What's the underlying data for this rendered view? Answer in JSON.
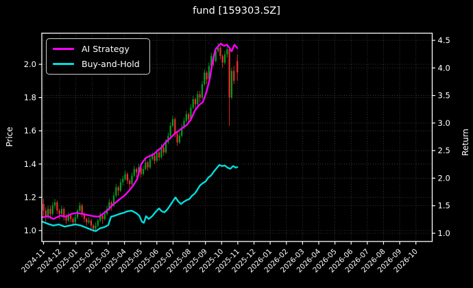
{
  "chart_data": {
    "type": "candlestick+line",
    "title": "fund [159303.SZ]",
    "ylabel_left": "Price",
    "ylabel_right": "Return",
    "grid": true,
    "legend_position": "upper left",
    "x_tick_labels": [
      "2024-11",
      "2024-12",
      "2025-01",
      "2025-02",
      "2025-03",
      "2025-04",
      "2025-05",
      "2025-06",
      "2025-07",
      "2025-08",
      "2025-09",
      "2025-10",
      "2025-11",
      "2025-12",
      "2026-01",
      "2026-02",
      "2026-03",
      "2026-04",
      "2026-05",
      "2026-06",
      "2026-07",
      "2026-08",
      "2026-09",
      "2026-10"
    ],
    "price_ticks": [
      1.0,
      1.2,
      1.4,
      1.6,
      1.8,
      2.0
    ],
    "return_ticks": [
      1.0,
      1.5,
      2.0,
      2.5,
      3.0,
      3.5,
      4.0,
      4.5
    ],
    "price_axis_range": [
      0.925,
      2.2
    ],
    "return_axis_range": [
      0.85,
      4.64
    ],
    "colors": {
      "background": "#000000",
      "axes_text": "#ffffff",
      "grid": "#5a5a5a",
      "ai_strategy": "#ff00ff",
      "buy_and_hold": "#00e0e0",
      "candle_up": "#00a01e",
      "candle_down": "#f03030"
    },
    "series": [
      {
        "name": "AI Strategy",
        "axis": "return",
        "color": "#ff00ff",
        "points": [
          [
            -0.06,
            1.29
          ],
          [
            0.28,
            1.31
          ],
          [
            0.61,
            1.26
          ],
          [
            1.04,
            1.32
          ],
          [
            1.38,
            1.3
          ],
          [
            1.71,
            1.35
          ],
          [
            2.05,
            1.37
          ],
          [
            2.39,
            1.35
          ],
          [
            2.73,
            1.33
          ],
          [
            3.07,
            1.31
          ],
          [
            3.41,
            1.3
          ],
          [
            3.75,
            1.37
          ],
          [
            4.0,
            1.43
          ],
          [
            4.25,
            1.51
          ],
          [
            4.51,
            1.57
          ],
          [
            4.76,
            1.63
          ],
          [
            5.02,
            1.69
          ],
          [
            5.27,
            1.77
          ],
          [
            5.52,
            1.86
          ],
          [
            5.78,
            1.98
          ],
          [
            6.03,
            2.25
          ],
          [
            6.29,
            2.36
          ],
          [
            6.54,
            2.4
          ],
          [
            6.79,
            2.43
          ],
          [
            7.05,
            2.5
          ],
          [
            7.3,
            2.56
          ],
          [
            7.56,
            2.66
          ],
          [
            7.81,
            2.72
          ],
          [
            8.07,
            2.8
          ],
          [
            8.32,
            2.85
          ],
          [
            8.57,
            2.91
          ],
          [
            8.83,
            2.96
          ],
          [
            9.08,
            3.05
          ],
          [
            9.34,
            3.22
          ],
          [
            9.59,
            3.32
          ],
          [
            9.84,
            3.38
          ],
          [
            10.06,
            3.56
          ],
          [
            10.27,
            3.8
          ],
          [
            10.44,
            4.11
          ],
          [
            10.61,
            4.33
          ],
          [
            10.78,
            4.39
          ],
          [
            10.94,
            4.44
          ],
          [
            11.16,
            4.4
          ],
          [
            11.33,
            4.42
          ],
          [
            11.5,
            4.36
          ],
          [
            11.62,
            4.3
          ],
          [
            11.79,
            4.42
          ],
          [
            11.97,
            4.36
          ]
        ]
      },
      {
        "name": "Buy-and-Hold",
        "axis": "return",
        "color": "#00e0e0",
        "points": [
          [
            -0.06,
            1.21
          ],
          [
            0.28,
            1.17
          ],
          [
            0.61,
            1.14
          ],
          [
            0.95,
            1.16
          ],
          [
            1.29,
            1.12
          ],
          [
            1.63,
            1.14
          ],
          [
            1.97,
            1.16
          ],
          [
            2.31,
            1.14
          ],
          [
            2.65,
            1.1
          ],
          [
            2.98,
            1.06
          ],
          [
            3.24,
            1.04
          ],
          [
            3.49,
            1.09
          ],
          [
            3.75,
            1.11
          ],
          [
            4.0,
            1.15
          ],
          [
            4.17,
            1.3
          ],
          [
            4.42,
            1.32
          ],
          [
            4.68,
            1.35
          ],
          [
            4.93,
            1.37
          ],
          [
            5.19,
            1.4
          ],
          [
            5.44,
            1.41
          ],
          [
            5.7,
            1.37
          ],
          [
            5.91,
            1.32
          ],
          [
            6.08,
            1.21
          ],
          [
            6.2,
            1.19
          ],
          [
            6.33,
            1.31
          ],
          [
            6.5,
            1.26
          ],
          [
            6.71,
            1.31
          ],
          [
            6.96,
            1.4
          ],
          [
            7.13,
            1.45
          ],
          [
            7.3,
            1.4
          ],
          [
            7.47,
            1.38
          ],
          [
            7.64,
            1.43
          ],
          [
            7.81,
            1.5
          ],
          [
            7.98,
            1.58
          ],
          [
            8.15,
            1.65
          ],
          [
            8.32,
            1.58
          ],
          [
            8.49,
            1.53
          ],
          [
            8.66,
            1.57
          ],
          [
            8.83,
            1.6
          ],
          [
            9.0,
            1.62
          ],
          [
            9.17,
            1.68
          ],
          [
            9.34,
            1.72
          ],
          [
            9.5,
            1.79
          ],
          [
            9.67,
            1.87
          ],
          [
            9.84,
            1.91
          ],
          [
            10.01,
            1.94
          ],
          [
            10.18,
            2.01
          ],
          [
            10.35,
            2.05
          ],
          [
            10.52,
            2.12
          ],
          [
            10.69,
            2.18
          ],
          [
            10.86,
            2.24
          ],
          [
            11.03,
            2.22
          ],
          [
            11.2,
            2.23
          ],
          [
            11.37,
            2.19
          ],
          [
            11.54,
            2.17
          ],
          [
            11.71,
            2.22
          ],
          [
            11.88,
            2.19
          ],
          [
            11.97,
            2.2
          ]
        ]
      }
    ],
    "candles": {
      "axis": "price",
      "format": [
        "t_months",
        "open",
        "high",
        "low",
        "close"
      ],
      "ohlc": [
        [
          0.0,
          1.16,
          1.19,
          1.09,
          1.12
        ],
        [
          0.14,
          1.12,
          1.14,
          1.05,
          1.08
        ],
        [
          0.28,
          1.08,
          1.15,
          1.07,
          1.13
        ],
        [
          0.42,
          1.13,
          1.15,
          1.07,
          1.1
        ],
        [
          0.56,
          1.1,
          1.17,
          1.09,
          1.15
        ],
        [
          0.7,
          1.15,
          1.19,
          1.13,
          1.17
        ],
        [
          0.84,
          1.17,
          1.18,
          1.1,
          1.12
        ],
        [
          0.98,
          1.12,
          1.13,
          1.07,
          1.1
        ],
        [
          1.12,
          1.1,
          1.15,
          1.08,
          1.13
        ],
        [
          1.26,
          1.13,
          1.14,
          1.06,
          1.08
        ],
        [
          1.4,
          1.08,
          1.1,
          1.04,
          1.06
        ],
        [
          1.54,
          1.06,
          1.11,
          1.05,
          1.09
        ],
        [
          1.68,
          1.09,
          1.1,
          1.05,
          1.07
        ],
        [
          1.82,
          1.07,
          1.08,
          1.03,
          1.05
        ],
        [
          1.96,
          1.05,
          1.1,
          1.04,
          1.08
        ],
        [
          2.1,
          1.08,
          1.13,
          1.07,
          1.12
        ],
        [
          2.24,
          1.12,
          1.17,
          1.11,
          1.15
        ],
        [
          2.38,
          1.15,
          1.16,
          1.08,
          1.1
        ],
        [
          2.52,
          1.1,
          1.11,
          1.05,
          1.07
        ],
        [
          2.66,
          1.07,
          1.08,
          1.03,
          1.05
        ],
        [
          2.8,
          1.05,
          1.08,
          1.04,
          1.06
        ],
        [
          2.94,
          1.06,
          1.07,
          1.01,
          1.03
        ],
        [
          3.08,
          1.03,
          1.04,
          0.99,
          1.01
        ],
        [
          3.22,
          1.01,
          1.05,
          1.0,
          1.03
        ],
        [
          3.36,
          1.03,
          1.07,
          1.02,
          1.06
        ],
        [
          3.5,
          1.06,
          1.11,
          1.05,
          1.09
        ],
        [
          3.64,
          1.09,
          1.1,
          1.04,
          1.07
        ],
        [
          3.78,
          1.07,
          1.12,
          1.06,
          1.1
        ],
        [
          3.92,
          1.1,
          1.15,
          1.09,
          1.13
        ],
        [
          4.06,
          1.13,
          1.19,
          1.12,
          1.17
        ],
        [
          4.2,
          1.17,
          1.18,
          1.12,
          1.15
        ],
        [
          4.34,
          1.15,
          1.23,
          1.14,
          1.21
        ],
        [
          4.48,
          1.21,
          1.28,
          1.2,
          1.26
        ],
        [
          4.62,
          1.26,
          1.27,
          1.21,
          1.24
        ],
        [
          4.76,
          1.24,
          1.31,
          1.23,
          1.29
        ],
        [
          4.9,
          1.29,
          1.33,
          1.27,
          1.31
        ],
        [
          5.04,
          1.31,
          1.36,
          1.3,
          1.34
        ],
        [
          5.18,
          1.34,
          1.35,
          1.28,
          1.3
        ],
        [
          5.32,
          1.3,
          1.31,
          1.25,
          1.28
        ],
        [
          5.46,
          1.28,
          1.35,
          1.27,
          1.33
        ],
        [
          5.6,
          1.33,
          1.39,
          1.32,
          1.37
        ],
        [
          5.74,
          1.37,
          1.38,
          1.32,
          1.35
        ],
        [
          5.88,
          1.35,
          1.4,
          1.34,
          1.38
        ],
        [
          6.02,
          1.38,
          1.39,
          1.32,
          1.34
        ],
        [
          6.16,
          1.34,
          1.39,
          1.33,
          1.37
        ],
        [
          6.3,
          1.37,
          1.43,
          1.36,
          1.41
        ],
        [
          6.44,
          1.41,
          1.42,
          1.36,
          1.38
        ],
        [
          6.58,
          1.38,
          1.45,
          1.37,
          1.43
        ],
        [
          6.72,
          1.43,
          1.47,
          1.42,
          1.45
        ],
        [
          6.86,
          1.45,
          1.46,
          1.4,
          1.42
        ],
        [
          7.0,
          1.42,
          1.49,
          1.41,
          1.47
        ],
        [
          7.14,
          1.47,
          1.48,
          1.42,
          1.44
        ],
        [
          7.28,
          1.44,
          1.52,
          1.43,
          1.5
        ],
        [
          7.42,
          1.5,
          1.51,
          1.45,
          1.47
        ],
        [
          7.56,
          1.47,
          1.55,
          1.46,
          1.53
        ],
        [
          7.7,
          1.53,
          1.59,
          1.52,
          1.57
        ],
        [
          7.84,
          1.57,
          1.65,
          1.56,
          1.63
        ],
        [
          7.98,
          1.63,
          1.69,
          1.62,
          1.67
        ],
        [
          8.12,
          1.67,
          1.68,
          1.56,
          1.58
        ],
        [
          8.26,
          1.58,
          1.59,
          1.51,
          1.53
        ],
        [
          8.4,
          1.53,
          1.59,
          1.52,
          1.57
        ],
        [
          8.54,
          1.57,
          1.64,
          1.56,
          1.62
        ],
        [
          8.68,
          1.62,
          1.68,
          1.61,
          1.66
        ],
        [
          8.82,
          1.66,
          1.72,
          1.65,
          1.7
        ],
        [
          8.96,
          1.7,
          1.71,
          1.64,
          1.67
        ],
        [
          9.1,
          1.67,
          1.76,
          1.66,
          1.74
        ],
        [
          9.24,
          1.74,
          1.81,
          1.73,
          1.79
        ],
        [
          9.38,
          1.79,
          1.8,
          1.73,
          1.76
        ],
        [
          9.52,
          1.76,
          1.84,
          1.75,
          1.82
        ],
        [
          9.66,
          1.82,
          1.84,
          1.77,
          1.8
        ],
        [
          9.8,
          1.8,
          1.9,
          1.79,
          1.88
        ],
        [
          9.94,
          1.88,
          1.97,
          1.87,
          1.95
        ],
        [
          10.08,
          1.95,
          1.96,
          1.88,
          1.91
        ],
        [
          10.22,
          1.91,
          2.01,
          1.9,
          1.99
        ],
        [
          10.36,
          1.99,
          2.07,
          1.98,
          2.05
        ],
        [
          10.5,
          2.05,
          2.06,
          1.99,
          2.02
        ],
        [
          10.64,
          2.02,
          2.1,
          2.01,
          2.08
        ],
        [
          10.78,
          2.08,
          2.13,
          2.07,
          2.1
        ],
        [
          10.92,
          2.1,
          2.11,
          2.03,
          2.05
        ],
        [
          11.06,
          2.05,
          2.06,
          1.98,
          2.01
        ],
        [
          11.2,
          2.01,
          2.08,
          2.0,
          2.06
        ],
        [
          11.34,
          2.06,
          2.12,
          2.04,
          2.09
        ],
        [
          11.48,
          2.09,
          2.1,
          1.63,
          1.8
        ],
        [
          11.62,
          1.8,
          1.98,
          1.79,
          1.96
        ],
        [
          11.76,
          1.96,
          1.99,
          1.88,
          1.9
        ],
        [
          11.97,
          2.02,
          2.06,
          1.9,
          1.95
        ]
      ]
    }
  }
}
